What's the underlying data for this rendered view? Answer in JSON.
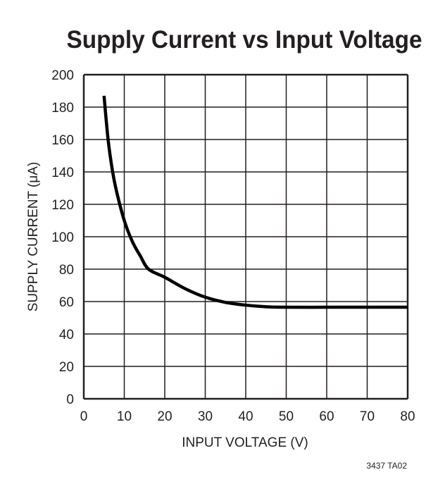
{
  "chart_data": {
    "type": "line",
    "title": "Supply Current vs Input Voltage",
    "xlabel": "INPUT VOLTAGE (V)",
    "ylabel": "SUPPLY CURRENT (μA)",
    "xlim": [
      0,
      80
    ],
    "ylim": [
      0,
      200
    ],
    "xticks": [
      0,
      10,
      20,
      30,
      40,
      50,
      60,
      70,
      80
    ],
    "yticks": [
      0,
      20,
      40,
      60,
      80,
      100,
      120,
      140,
      160,
      180,
      200
    ],
    "grid": true,
    "series": [
      {
        "x": [
          5,
          6,
          7,
          8,
          10,
          12,
          14,
          16,
          20,
          25,
          30,
          35,
          40,
          45,
          50,
          60,
          70,
          80
        ],
        "y": [
          187,
          160,
          142,
          129,
          110,
          97,
          88,
          80,
          75,
          68,
          62.7,
          59.5,
          57.8,
          56.8,
          56.5,
          56.5,
          56.5,
          56.5
        ]
      }
    ],
    "line_color": "#000000",
    "footnote": "3437 TA02"
  }
}
